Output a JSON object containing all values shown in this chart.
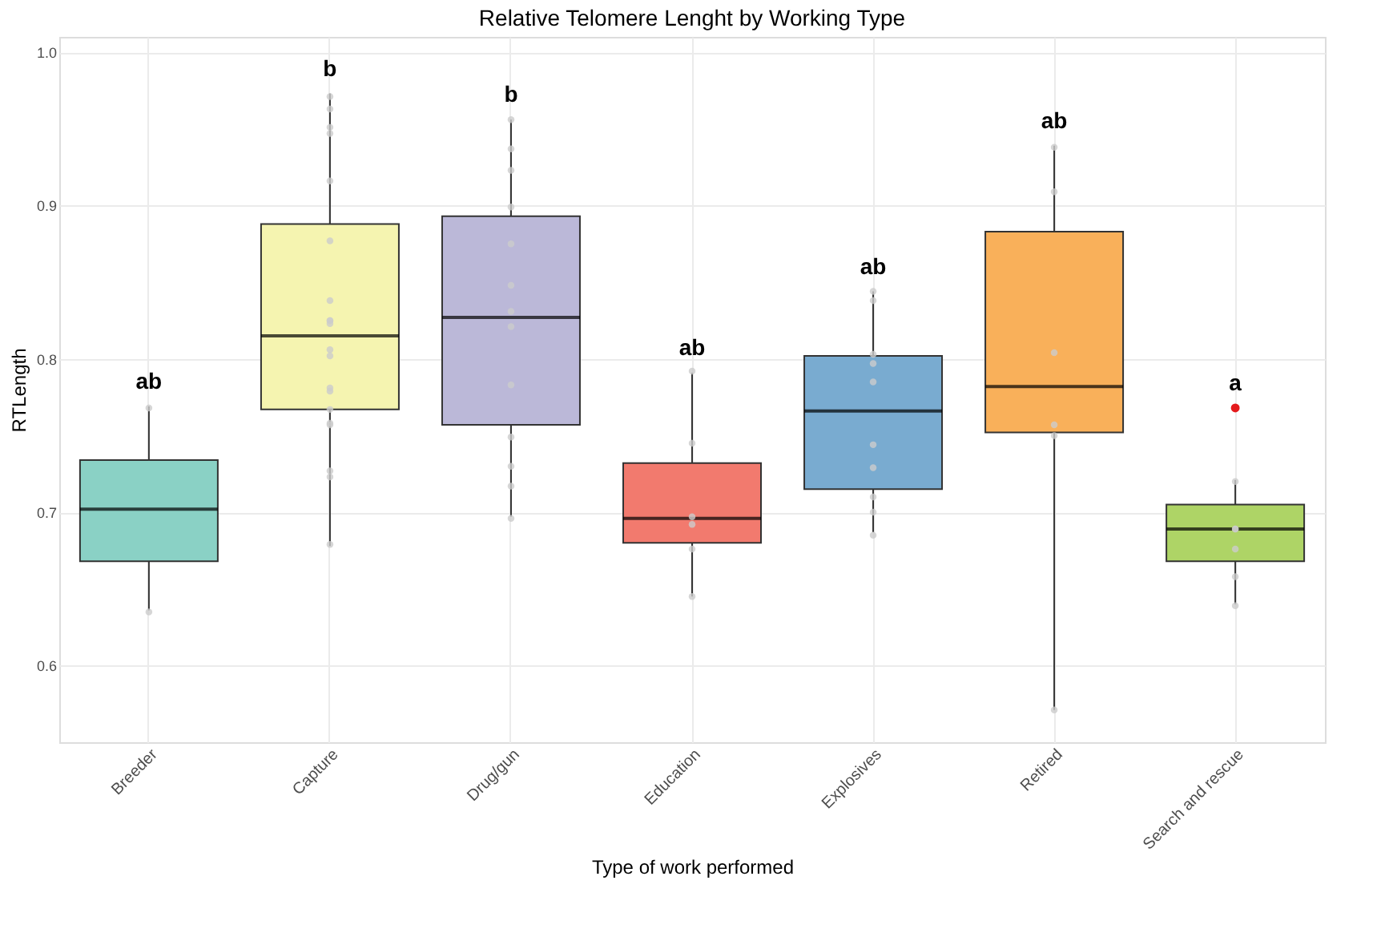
{
  "chart_data": {
    "type": "box",
    "title": "Relative Telomere Lenght by Working Type",
    "xlabel": "Type of work performed",
    "ylabel": "RTLength",
    "categories": [
      "Breeder",
      "Capture",
      "Drug/gun",
      "Education",
      "Explosives",
      "Retired",
      "Search and rescue"
    ],
    "ylim": [
      0.55,
      1.01
    ],
    "yticks": [
      0.6,
      0.7,
      0.8,
      0.9,
      {
        "value": 1.0,
        "label": "1.0"
      }
    ],
    "grid": true,
    "series": [
      {
        "color": "#e41a1c",
        "colors": [
          "#8ad1c5",
          "#f5f4b0",
          "#bbb8d8",
          "#f27a6e",
          "#79abd0",
          "#f9b05a",
          "#aed466"
        ],
        "boxes": [
          {
            "low": 0.636,
            "q1": 0.668,
            "median": 0.702,
            "q3": 0.734,
            "high": 0.769
          },
          {
            "low": 0.678,
            "q1": 0.767,
            "median": 0.815,
            "q3": 0.888,
            "high": 0.973
          },
          {
            "low": 0.697,
            "q1": 0.757,
            "median": 0.827,
            "q3": 0.893,
            "high": 0.956
          },
          {
            "low": 0.645,
            "q1": 0.68,
            "median": 0.696,
            "q3": 0.732,
            "high": 0.791
          },
          {
            "low": 0.687,
            "q1": 0.715,
            "median": 0.766,
            "q3": 0.802,
            "high": 0.844
          },
          {
            "low": 0.571,
            "q1": 0.752,
            "median": 0.782,
            "q3": 0.883,
            "high": 0.939
          },
          {
            "low": 0.64,
            "q1": 0.668,
            "median": 0.689,
            "q3": 0.705,
            "high": 0.721,
            "outliers": [
              0.768
            ]
          }
        ]
      },
      {
        "type": "scatter",
        "color": "#cccccc",
        "x": [
          "Breeder",
          "Breeder",
          "Capture",
          "Capture",
          "Capture",
          "Capture",
          "Capture",
          "Capture",
          "Capture",
          "Capture",
          "Capture",
          "Capture",
          "Capture",
          "Capture",
          "Capture",
          "Capture",
          "Capture",
          "Capture",
          "Capture",
          "Capture",
          "Capture",
          "Capture",
          "Drug/gun",
          "Drug/gun",
          "Drug/gun",
          "Drug/gun",
          "Drug/gun",
          "Drug/gun",
          "Drug/gun",
          "Drug/gun",
          "Drug/gun",
          "Drug/gun",
          "Drug/gun",
          "Drug/gun",
          "Drug/gun",
          "Education",
          "Education",
          "Education",
          "Education",
          "Education",
          "Education",
          "Explosives",
          "Explosives",
          "Explosives",
          "Explosives",
          "Explosives",
          "Explosives",
          "Explosives",
          "Explosives",
          "Explosives",
          "Explosives",
          "Retired",
          "Retired",
          "Retired",
          "Retired",
          "Retired",
          "Retired",
          "Search and rescue",
          "Search and rescue",
          "Search and rescue",
          "Search and rescue",
          "Search and rescue",
          "Search and rescue"
        ],
        "values": [
          0.768,
          0.635,
          0.971,
          0.963,
          0.951,
          0.947,
          0.916,
          0.877,
          0.838,
          0.825,
          0.825,
          0.823,
          0.806,
          0.802,
          0.781,
          0.779,
          0.767,
          0.758,
          0.757,
          0.727,
          0.723,
          0.679,
          0.956,
          0.937,
          0.923,
          0.899,
          0.875,
          0.848,
          0.831,
          0.821,
          0.783,
          0.749,
          0.73,
          0.717,
          0.696,
          0.792,
          0.745,
          0.697,
          0.692,
          0.676,
          0.645,
          0.844,
          0.838,
          0.803,
          0.797,
          0.785,
          0.744,
          0.729,
          0.71,
          0.7,
          0.685,
          0.938,
          0.909,
          0.804,
          0.757,
          0.75,
          0.571,
          0.72,
          0.689,
          0.689,
          0.676,
          0.658,
          0.639
        ]
      }
    ],
    "annotations": [
      "ab",
      "b",
      "b",
      "ab",
      "ab",
      "ab",
      "a"
    ]
  }
}
